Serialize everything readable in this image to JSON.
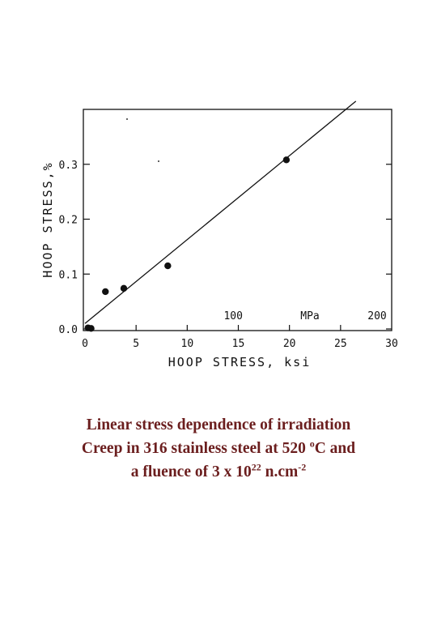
{
  "chart_data": {
    "type": "scatter",
    "xlabel": "HOOP STRESS, ksi",
    "ylabel": "HOOP STRESS,%",
    "xlim": [
      0,
      30
    ],
    "ylim": [
      0,
      0.4
    ],
    "x_ticks": [
      "0",
      "5",
      "10",
      "15",
      "20",
      "25",
      "30"
    ],
    "y_ticks": [
      "0.0",
      "0.1",
      "0.2",
      "0.3"
    ],
    "x_tick_values": [
      0,
      5,
      10,
      15,
      20,
      25,
      30
    ],
    "y_tick_values": [
      0,
      0.1,
      0.2,
      0.3
    ],
    "secondary_axis": {
      "unit": "MPa",
      "ticks": [
        "100",
        "200"
      ],
      "tick_values_ksi": [
        14.5,
        29.0
      ]
    },
    "points": [
      {
        "x": 0.3,
        "y": 0.002
      },
      {
        "x": 0.6,
        "y": 0.001
      },
      {
        "x": 2.0,
        "y": 0.068
      },
      {
        "x": 3.8,
        "y": 0.074
      },
      {
        "x": 8.1,
        "y": 0.115
      },
      {
        "x": 19.7,
        "y": 0.308
      }
    ],
    "fit_line": {
      "x": [
        0,
        26.5
      ],
      "y": [
        0.01,
        0.415
      ]
    },
    "grid": false,
    "legend": "none"
  },
  "caption": {
    "line1": "Linear stress dependence of irradiation",
    "line2_prefix": "Creep in 316 stainless steel at 520 ",
    "line2_sup": "o",
    "line2_suffix": "C and",
    "line3_prefix": "a  fluence of 3 x 10",
    "line3_sup1": "22",
    "line3_mid": " n.cm",
    "line3_sup2": "-2"
  }
}
